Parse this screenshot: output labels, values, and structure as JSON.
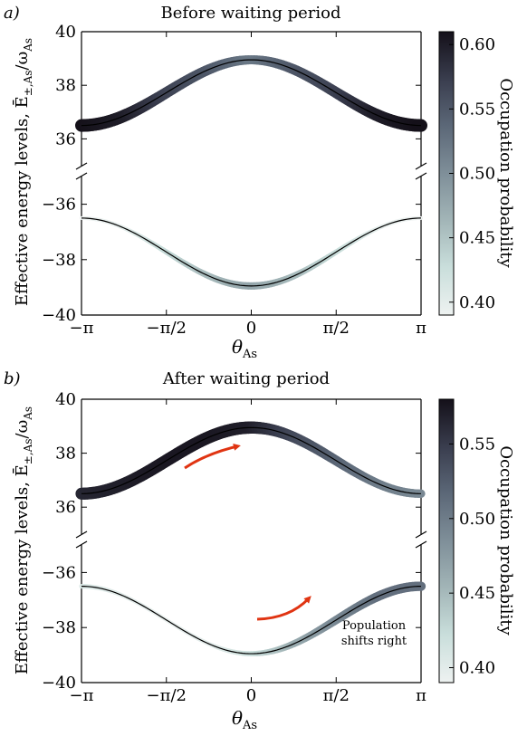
{
  "colors": {
    "colormap": [
      "#eef2f1",
      "#c9dedb",
      "#a3b6b8",
      "#7f8f99",
      "#5b6777",
      "#3a3e4f",
      "#141019"
    ],
    "trend_line": "#000000",
    "arrow": "#e03412",
    "axis": "#000000"
  },
  "shared": {
    "xlabel": "θ",
    "xlabel_sub": "As",
    "ylabel": "Effective energy levels, Ē",
    "ylabel_sub": "±,As",
    "ylabel_div": "/ω",
    "ylabel_div_sub": "As",
    "cbar_label": "Occupation probability",
    "x_ticks": [
      "−π",
      "−π/2",
      "0",
      "π/2",
      "π"
    ],
    "y_ticks_upper": [
      "40",
      "38",
      "36"
    ],
    "y_ticks_lower": [
      "−36",
      "−38",
      "−40"
    ]
  },
  "panel_a": {
    "tag": "a)",
    "title": "Before waiting period",
    "cbar_ticks": [
      "0.60",
      "0.55",
      "0.50",
      "0.45",
      "0.40"
    ]
  },
  "panel_b": {
    "tag": "b)",
    "title": "After waiting period",
    "cbar_ticks": [
      "0.55",
      "0.50",
      "0.45",
      "0.40"
    ],
    "annotation": [
      "Population",
      "shifts right"
    ]
  },
  "chart_data": [
    {
      "type": "line",
      "title": "Before waiting period",
      "xlabel": "θAs",
      "ylabel": "Effective energy levels, Ē±,As/ωAs",
      "colorbar": {
        "label": "Occupation probability",
        "range": [
          0.39,
          0.61
        ],
        "ticks": [
          0.6,
          0.55,
          0.5,
          0.45,
          0.4
        ]
      },
      "xlim": [
        -3.1416,
        3.1416
      ],
      "ylim_upper": [
        35,
        40
      ],
      "ylim_lower": [
        -40,
        -35
      ],
      "series": [
        {
          "branch": "upper",
          "x": [
            -3.1416,
            -2.3562,
            -1.5708,
            -0.7854,
            0,
            0.7854,
            1.5708,
            2.3562,
            3.1416
          ],
          "energy": [
            36.5,
            36.9,
            37.8,
            38.6,
            38.95,
            38.6,
            37.8,
            36.9,
            36.5
          ],
          "occupation": [
            0.61,
            0.6,
            0.57,
            0.55,
            0.52,
            0.55,
            0.57,
            0.6,
            0.61
          ]
        },
        {
          "branch": "lower",
          "x": [
            -3.1416,
            -2.3562,
            -1.5708,
            -0.7854,
            0,
            0.7854,
            1.5708,
            2.3562,
            3.1416
          ],
          "energy": [
            -36.5,
            -36.9,
            -37.8,
            -38.6,
            -38.95,
            -38.6,
            -37.8,
            -36.9,
            -36.5
          ],
          "occupation": [
            0.39,
            0.4,
            0.43,
            0.46,
            0.48,
            0.46,
            0.43,
            0.4,
            0.39
          ]
        }
      ]
    },
    {
      "type": "line",
      "title": "After waiting period",
      "xlabel": "θAs",
      "ylabel": "Effective energy levels, Ē±,As/ωAs",
      "colorbar": {
        "label": "Occupation probability",
        "range": [
          0.39,
          0.58
        ],
        "ticks": [
          0.55,
          0.5,
          0.45,
          0.4
        ]
      },
      "xlim": [
        -3.1416,
        3.1416
      ],
      "ylim_upper": [
        35,
        40
      ],
      "ylim_lower": [
        -40,
        -35
      ],
      "annotation": "Population shifts right",
      "series": [
        {
          "branch": "upper",
          "x": [
            -3.1416,
            -2.3562,
            -1.5708,
            -0.7854,
            0,
            0.7854,
            1.5708,
            2.3562,
            3.1416
          ],
          "energy": [
            36.5,
            36.9,
            37.8,
            38.6,
            38.95,
            38.6,
            37.8,
            36.9,
            36.5
          ],
          "occupation": [
            0.565,
            0.57,
            0.575,
            0.575,
            0.57,
            0.54,
            0.52,
            0.5,
            0.49
          ]
        },
        {
          "branch": "lower",
          "x": [
            -3.1416,
            -2.3562,
            -1.5708,
            -0.7854,
            0,
            0.7854,
            1.5708,
            2.3562,
            3.1416
          ],
          "energy": [
            -36.5,
            -36.9,
            -37.8,
            -38.6,
            -38.95,
            -38.6,
            -37.8,
            -36.9,
            -36.5
          ],
          "occupation": [
            0.41,
            0.4,
            0.395,
            0.4,
            0.42,
            0.46,
            0.49,
            0.51,
            0.51
          ]
        }
      ]
    }
  ]
}
